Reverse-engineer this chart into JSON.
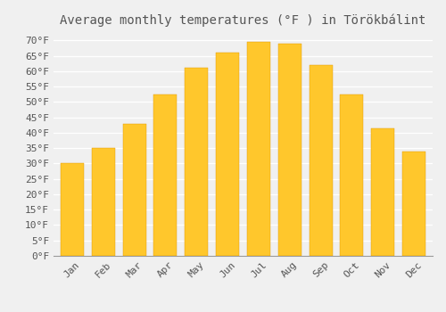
{
  "title": "Average monthly temperatures (°F ) in Törökbálint",
  "months": [
    "Jan",
    "Feb",
    "Mar",
    "Apr",
    "May",
    "Jun",
    "Jul",
    "Aug",
    "Sep",
    "Oct",
    "Nov",
    "Dec"
  ],
  "values": [
    30,
    35,
    43,
    52.5,
    61,
    66,
    69.5,
    69,
    62,
    52.5,
    41.5,
    34
  ],
  "bar_color_top": "#FFC72C",
  "bar_color_bottom": "#F5A800",
  "bar_edge_color": "#E09600",
  "background_color": "#F0F0F0",
  "grid_color": "#FFFFFF",
  "text_color": "#555555",
  "ylim": [
    0,
    73
  ],
  "yticks": [
    0,
    5,
    10,
    15,
    20,
    25,
    30,
    35,
    40,
    45,
    50,
    55,
    60,
    65,
    70
  ],
  "title_fontsize": 10,
  "tick_fontsize": 8,
  "xlabel_rotation": 45,
  "bar_width": 0.75
}
